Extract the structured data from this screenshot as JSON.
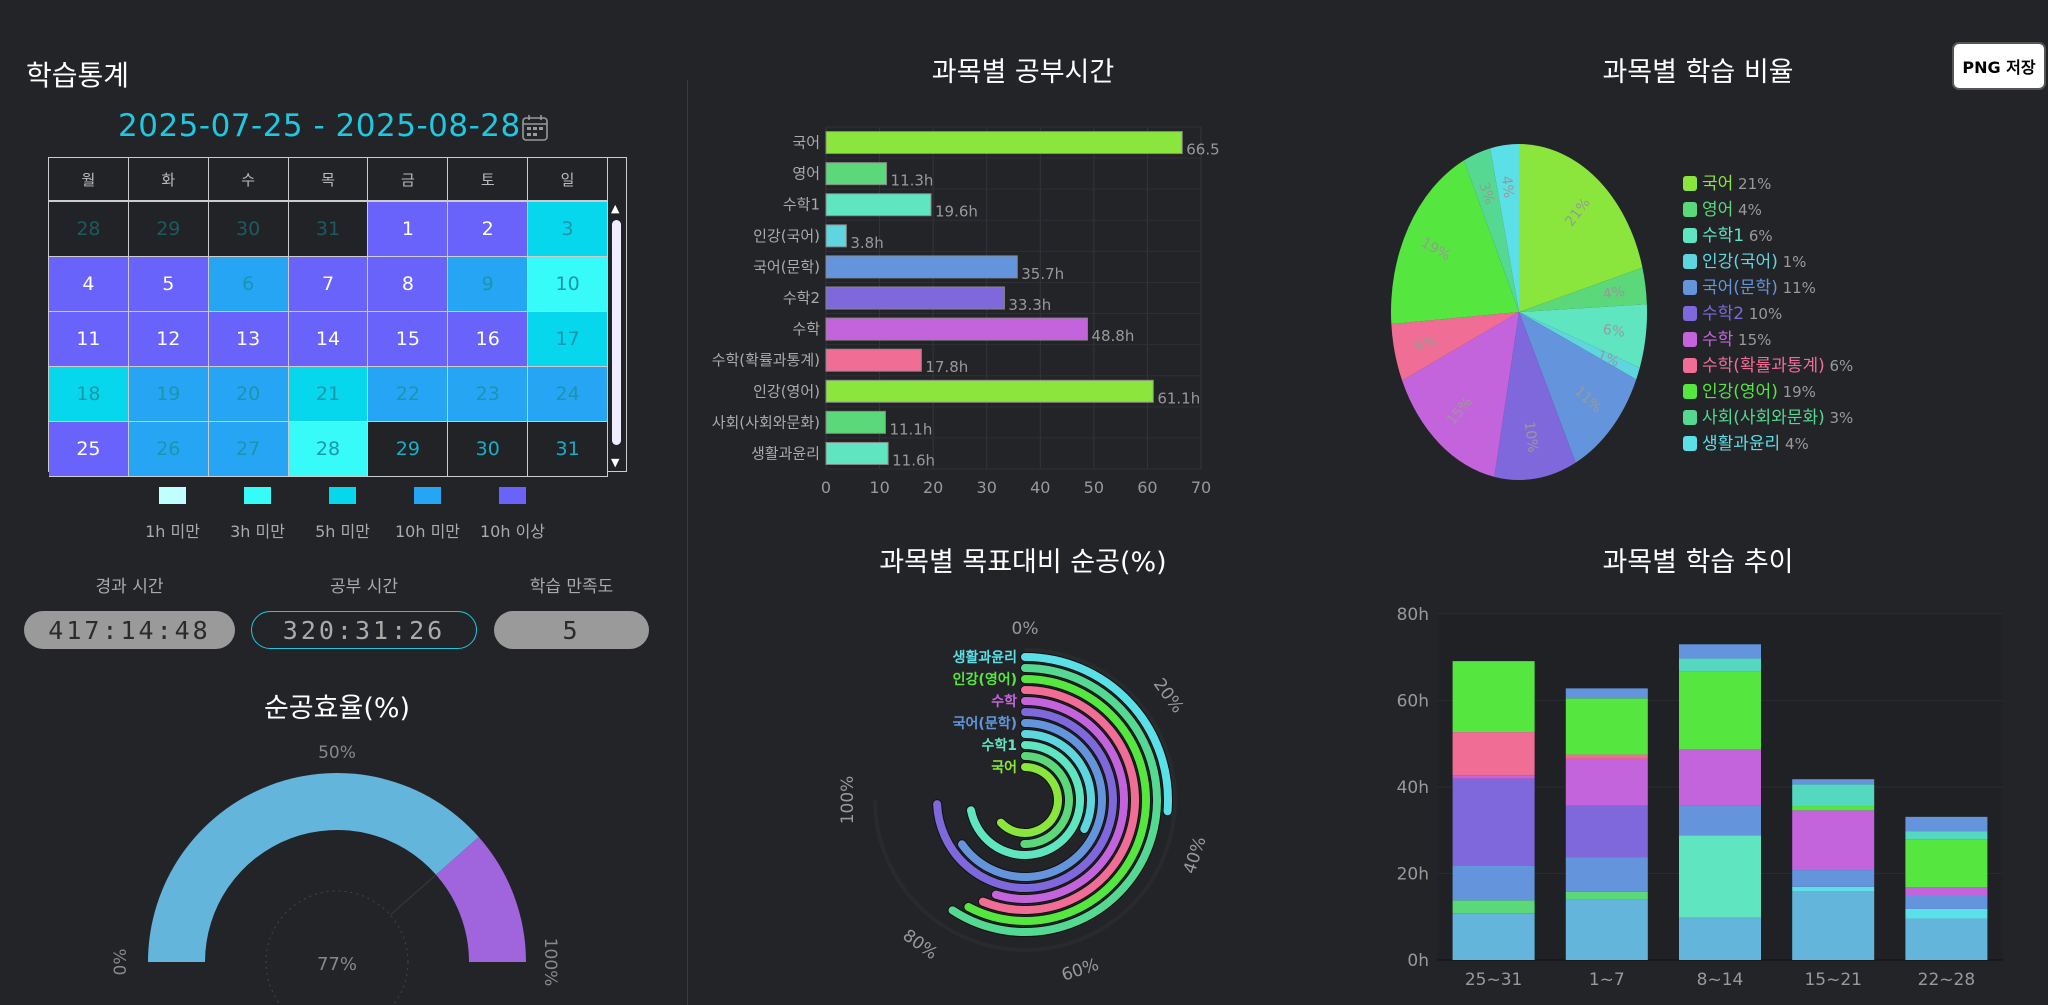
{
  "header": {
    "title": "학습통계",
    "date_range": "2025-07-25 - 2025-08-28",
    "calendar_icon": "calendar-icon",
    "png_button": "PNG 저장"
  },
  "calendar": {
    "weekdays": [
      "월",
      "화",
      "수",
      "목",
      "금",
      "토",
      "일"
    ],
    "weeks": [
      [
        {
          "d": "28",
          "level": 0,
          "outside": true
        },
        {
          "d": "29",
          "level": 0,
          "outside": true
        },
        {
          "d": "30",
          "level": 0,
          "outside": true
        },
        {
          "d": "31",
          "level": 0,
          "outside": true
        },
        {
          "d": "1",
          "level": 5
        },
        {
          "d": "2",
          "level": 5
        },
        {
          "d": "3",
          "level": 3
        }
      ],
      [
        {
          "d": "4",
          "level": 5
        },
        {
          "d": "5",
          "level": 5
        },
        {
          "d": "6",
          "level": 4
        },
        {
          "d": "7",
          "level": 5
        },
        {
          "d": "8",
          "level": 5
        },
        {
          "d": "9",
          "level": 4
        },
        {
          "d": "10",
          "level": 2
        }
      ],
      [
        {
          "d": "11",
          "level": 5
        },
        {
          "d": "12",
          "level": 5
        },
        {
          "d": "13",
          "level": 5
        },
        {
          "d": "14",
          "level": 5
        },
        {
          "d": "15",
          "level": 5
        },
        {
          "d": "16",
          "level": 5
        },
        {
          "d": "17",
          "level": 3
        }
      ],
      [
        {
          "d": "18",
          "level": 3
        },
        {
          "d": "19",
          "level": 4
        },
        {
          "d": "20",
          "level": 4
        },
        {
          "d": "21",
          "level": 3
        },
        {
          "d": "22",
          "level": 4
        },
        {
          "d": "23",
          "level": 4
        },
        {
          "d": "24",
          "level": 4
        }
      ],
      [
        {
          "d": "25",
          "level": 5
        },
        {
          "d": "26",
          "level": 4
        },
        {
          "d": "27",
          "level": 4
        },
        {
          "d": "28",
          "level": 2
        },
        {
          "d": "29",
          "level": 0
        },
        {
          "d": "30",
          "level": 0
        },
        {
          "d": "31",
          "level": 0
        }
      ]
    ],
    "legend": [
      {
        "label": "1h 미만",
        "color": "#c0ffff"
      },
      {
        "label": "3h 미만",
        "color": "#36fbf8"
      },
      {
        "label": "5h 미만",
        "color": "#06d7ec"
      },
      {
        "label": "10h 미만",
        "color": "#27a5f5"
      },
      {
        "label": "10h 이상",
        "color": "#6a63fb"
      }
    ]
  },
  "stats": [
    {
      "label": "경과 시간",
      "value": "417:14:48"
    },
    {
      "label": "공부 시간",
      "value": "320:31:26"
    },
    {
      "label": "학습 만족도",
      "value": "5"
    }
  ],
  "chart_data": [
    {
      "type": "gauge",
      "title": "순공효율(%)",
      "value": 77,
      "center_label": "77%",
      "tick_labels": [
        "0%",
        "50%",
        "100%"
      ],
      "range": [
        0,
        100
      ],
      "colors": {
        "fill": "#64b5dc",
        "rest": "#a064dc"
      }
    },
    {
      "type": "bar",
      "orientation": "horizontal",
      "title": "과목별 공부시간",
      "categories": [
        "국어",
        "영어",
        "수학1",
        "인강(국어)",
        "국어(문학)",
        "수학2",
        "수학",
        "수학(확률과통계)",
        "인강(영어)",
        "사회(사회와문화)",
        "생활과윤리"
      ],
      "values": [
        66.5,
        11.3,
        19.6,
        3.8,
        35.7,
        33.3,
        48.8,
        17.8,
        61.1,
        11.1,
        11.6
      ],
      "data_labels": [
        "66.5",
        "11.3h",
        "19.6h",
        "3.8h",
        "35.7h",
        "33.3h",
        "48.8h",
        "17.8h",
        "61.1h",
        "11.1h",
        "11.6h"
      ],
      "colors": [
        "#8ae63c",
        "#5ad87a",
        "#5fe6c0",
        "#5ed6e0",
        "#6495dc",
        "#7e68dc",
        "#c464dc",
        "#f06e96",
        "#8ae63c",
        "#5ad87a",
        "#5fe6c0"
      ],
      "xlim": [
        0,
        70
      ],
      "xticks": [
        "0",
        "10",
        "20",
        "30",
        "40",
        "50",
        "60",
        "70"
      ],
      "grid": true
    },
    {
      "type": "pie",
      "title": "과목별 학습 비율",
      "labels": [
        "국어",
        "영어",
        "수학1",
        "인강(국어)",
        "국어(문학)",
        "수학2",
        "수학",
        "수학(확률과통계)",
        "인강(영어)",
        "사회(사회와문화)",
        "생활과윤리"
      ],
      "values": [
        66.5,
        11.3,
        19.6,
        3.8,
        35.7,
        33.3,
        48.8,
        17.8,
        61.1,
        11.1,
        11.6
      ],
      "percent_labels": [
        "21%",
        "4%",
        "6%",
        "1%",
        "11%",
        "10%",
        "15%",
        "6%",
        "19%",
        "3%",
        "4%"
      ],
      "colors": [
        "#8ae63c",
        "#5ad87a",
        "#5fe6c0",
        "#5ed6e0",
        "#6495dc",
        "#7e68dc",
        "#c464dc",
        "#f06e96",
        "#55e640",
        "#55d891",
        "#5ae0e6"
      ],
      "legend": "right"
    },
    {
      "type": "radial-bar",
      "title": "과목별 목표대비 순공(%)",
      "series": [
        "국어",
        "영어",
        "수학1",
        "인강(국어)",
        "국어(문학)",
        "수학2",
        "수학",
        "수학(확률과통계)",
        "인강(영어)",
        "사회(사회와문화)",
        "생활과윤리"
      ],
      "values": [
        84,
        67,
        96,
        43,
        87,
        99,
        73,
        75,
        77,
        79,
        35
      ],
      "shown_labels": [
        {
          "index": 0,
          "text": "국어"
        },
        {
          "index": 2,
          "text": "수학1"
        },
        {
          "index": 4,
          "text": "국어(문학)"
        },
        {
          "index": 6,
          "text": "수학"
        },
        {
          "index": 8,
          "text": "인강(영어)"
        },
        {
          "index": 10,
          "text": "생활과윤리"
        }
      ],
      "colors": [
        "#8ae63c",
        "#5ad87a",
        "#5fe6c0",
        "#5ed6e0",
        "#6495dc",
        "#7e68dc",
        "#c464dc",
        "#f06e96",
        "#55e640",
        "#55d891",
        "#5ae0e6"
      ],
      "range": [
        0,
        100
      ],
      "axis_labels": [
        "0%",
        "20%",
        "40%",
        "60%",
        "80%",
        "100%"
      ]
    },
    {
      "type": "bar",
      "stacked": true,
      "title": "과목별 학습 추이",
      "categories": [
        "25~31",
        "1~7",
        "8~14",
        "15~21",
        "22~28"
      ],
      "stacks": [
        [
          {
            "value": 10.8,
            "color": "#64b5dc"
          },
          {
            "value": 3.0,
            "color": "#5ad87a"
          },
          {
            "value": 8.1,
            "color": "#6495dc"
          },
          {
            "value": 20.0,
            "color": "#7e68dc"
          },
          {
            "value": 0.8,
            "color": "#c464dc"
          },
          {
            "value": 10.0,
            "color": "#f06e96"
          },
          {
            "value": 16.4,
            "color": "#55e640"
          }
        ],
        [
          {
            "value": 13.9,
            "color": "#64b5dc"
          },
          {
            "value": 1.9,
            "color": "#5ad87a"
          },
          {
            "value": 8.0,
            "color": "#6495dc"
          },
          {
            "value": 11.9,
            "color": "#7e68dc"
          },
          {
            "value": 10.8,
            "color": "#c464dc"
          },
          {
            "value": 1.0,
            "color": "#f06e96"
          },
          {
            "value": 13.0,
            "color": "#55e640"
          },
          {
            "value": 2.3,
            "color": "#6495dc"
          }
        ],
        [
          {
            "value": 9.8,
            "color": "#64b5dc"
          },
          {
            "value": 19.0,
            "color": "#5fe6c0"
          },
          {
            "value": 6.9,
            "color": "#6495dc"
          },
          {
            "value": 13.0,
            "color": "#c464dc"
          },
          {
            "value": 18.1,
            "color": "#55e640"
          },
          {
            "value": 2.9,
            "color": "#55d8c0"
          },
          {
            "value": 3.3,
            "color": "#6495dc"
          }
        ],
        [
          {
            "value": 15.8,
            "color": "#64b5dc"
          },
          {
            "value": 1.1,
            "color": "#5ae0e6"
          },
          {
            "value": 3.9,
            "color": "#6495dc"
          },
          {
            "value": 13.8,
            "color": "#c464dc"
          },
          {
            "value": 1.0,
            "color": "#55e640"
          },
          {
            "value": 5.0,
            "color": "#55d8c0"
          },
          {
            "value": 1.2,
            "color": "#6495dc"
          }
        ],
        [
          {
            "value": 9.6,
            "color": "#64b5dc"
          },
          {
            "value": 2.2,
            "color": "#5ae0e6"
          },
          {
            "value": 3.0,
            "color": "#6495dc"
          },
          {
            "value": 2.0,
            "color": "#c464dc"
          },
          {
            "value": 11.0,
            "color": "#55e640"
          },
          {
            "value": 2.0,
            "color": "#55d8c0"
          },
          {
            "value": 3.3,
            "color": "#6495dc"
          }
        ]
      ],
      "ylim": [
        0,
        80
      ],
      "yticks": [
        "0h",
        "20h",
        "40h",
        "60h",
        "80h"
      ]
    }
  ]
}
